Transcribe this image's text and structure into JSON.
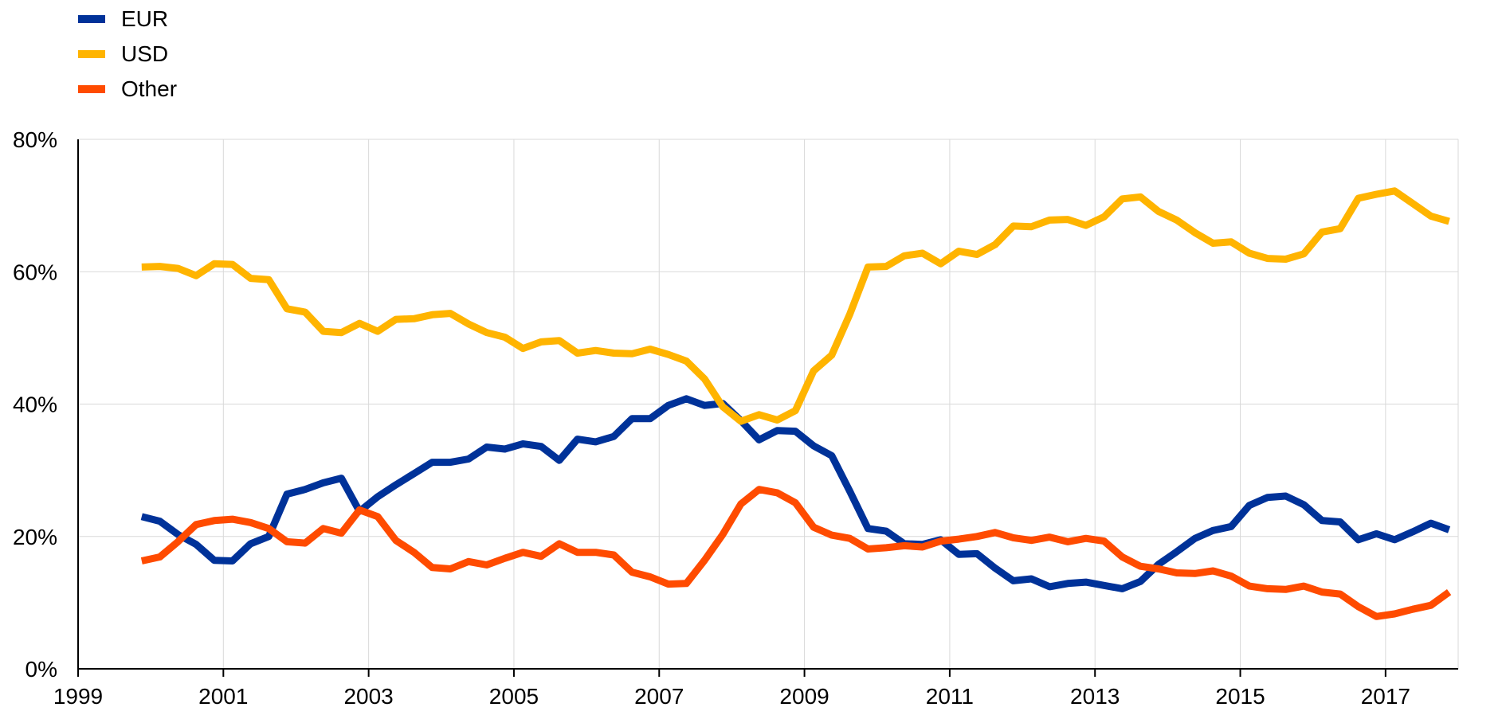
{
  "chart_data": {
    "type": "line",
    "title": "",
    "xlabel": "",
    "ylabel": "",
    "x_ticks": [
      "1999",
      "2001",
      "2003",
      "2005",
      "2007",
      "2009",
      "2011",
      "2013",
      "2015",
      "2017"
    ],
    "y_ticks": [
      "0%",
      "20%",
      "40%",
      "60%",
      "80%"
    ],
    "xlim": [
      1999.0,
      2018.0
    ],
    "ylim": [
      0,
      80
    ],
    "grid": true,
    "legend_position": "top-left",
    "x": [
      1999.875,
      2000.125,
      2000.375,
      2000.625,
      2000.875,
      2001.125,
      2001.375,
      2001.625,
      2001.875,
      2002.125,
      2002.375,
      2002.625,
      2002.875,
      2003.125,
      2003.375,
      2003.625,
      2003.875,
      2004.125,
      2004.375,
      2004.625,
      2004.875,
      2005.125,
      2005.375,
      2005.625,
      2005.875,
      2006.125,
      2006.375,
      2006.625,
      2006.875,
      2007.125,
      2007.375,
      2007.625,
      2007.875,
      2008.125,
      2008.375,
      2008.625,
      2008.875,
      2009.125,
      2009.375,
      2009.625,
      2009.875,
      2010.125,
      2010.375,
      2010.625,
      2010.875,
      2011.125,
      2011.375,
      2011.625,
      2011.875,
      2012.125,
      2012.375,
      2012.625,
      2012.875,
      2013.125,
      2013.375,
      2013.625,
      2013.875,
      2014.125,
      2014.375,
      2014.625,
      2014.875,
      2015.125,
      2015.375,
      2015.625,
      2015.875,
      2016.125,
      2016.375,
      2016.625,
      2016.875,
      2017.125,
      2017.375,
      2017.625,
      2017.875
    ],
    "series": [
      {
        "name": "EUR",
        "color": "#003299",
        "values": [
          23.0,
          22.3,
          20.3,
          18.8,
          16.4,
          16.3,
          18.9,
          20.0,
          26.4,
          27.1,
          28.1,
          28.8,
          23.8,
          26.0,
          27.8,
          29.5,
          31.2,
          31.2,
          31.7,
          33.5,
          33.2,
          34.0,
          33.6,
          31.5,
          34.7,
          34.3,
          35.1,
          37.8,
          37.8,
          39.8,
          40.8,
          39.8,
          40.1,
          37.5,
          34.6,
          36.0,
          35.9,
          33.7,
          32.2,
          26.8,
          21.2,
          20.8,
          18.9,
          18.8,
          19.5,
          17.3,
          17.4,
          15.2,
          13.3,
          13.6,
          12.4,
          12.9,
          13.1,
          12.6,
          12.1,
          13.2,
          15.8,
          17.7,
          19.7,
          20.9,
          21.5,
          24.7,
          25.9,
          26.1,
          24.8,
          22.4,
          22.2,
          19.5,
          20.4,
          19.5,
          20.7,
          22.0,
          21.0
        ]
      },
      {
        "name": "USD",
        "color": "#FFB400",
        "values": [
          60.7,
          60.8,
          60.5,
          59.4,
          61.2,
          61.1,
          59.0,
          58.8,
          54.4,
          53.9,
          51.0,
          50.8,
          52.2,
          51.0,
          52.8,
          52.9,
          53.5,
          53.7,
          52.1,
          50.8,
          50.1,
          48.4,
          49.4,
          49.6,
          47.7,
          48.1,
          47.7,
          47.6,
          48.3,
          47.5,
          46.5,
          43.8,
          39.6,
          37.4,
          38.4,
          37.6,
          39.0,
          45.0,
          47.4,
          53.6,
          60.7,
          60.8,
          62.4,
          62.8,
          61.2,
          63.1,
          62.6,
          64.1,
          66.9,
          66.8,
          67.8,
          67.9,
          67.0,
          68.3,
          71.0,
          71.3,
          69.1,
          67.8,
          65.9,
          64.3,
          64.5,
          62.8,
          62.0,
          61.9,
          62.7,
          66.0,
          66.5,
          71.1,
          71.7,
          72.2,
          70.3,
          68.4,
          67.6
        ]
      },
      {
        "name": "Other",
        "color": "#FF4B00",
        "values": [
          16.3,
          16.9,
          19.2,
          21.8,
          22.4,
          22.6,
          22.1,
          21.2,
          19.2,
          19.0,
          21.2,
          20.5,
          24.0,
          23.0,
          19.4,
          17.6,
          15.3,
          15.1,
          16.2,
          15.7,
          16.7,
          17.6,
          17.0,
          18.9,
          17.6,
          17.6,
          17.2,
          14.6,
          13.9,
          12.8,
          12.9,
          16.4,
          20.3,
          24.9,
          27.1,
          26.6,
          25.1,
          21.4,
          20.2,
          19.7,
          18.1,
          18.3,
          18.6,
          18.4,
          19.3,
          19.6,
          20.0,
          20.6,
          19.8,
          19.4,
          19.9,
          19.2,
          19.7,
          19.3,
          16.9,
          15.5,
          15.1,
          14.5,
          14.4,
          14.8,
          14.0,
          12.5,
          12.1,
          12.0,
          12.5,
          11.6,
          11.3,
          9.4,
          7.9,
          8.3,
          9.0,
          9.6,
          11.6
        ]
      }
    ]
  }
}
